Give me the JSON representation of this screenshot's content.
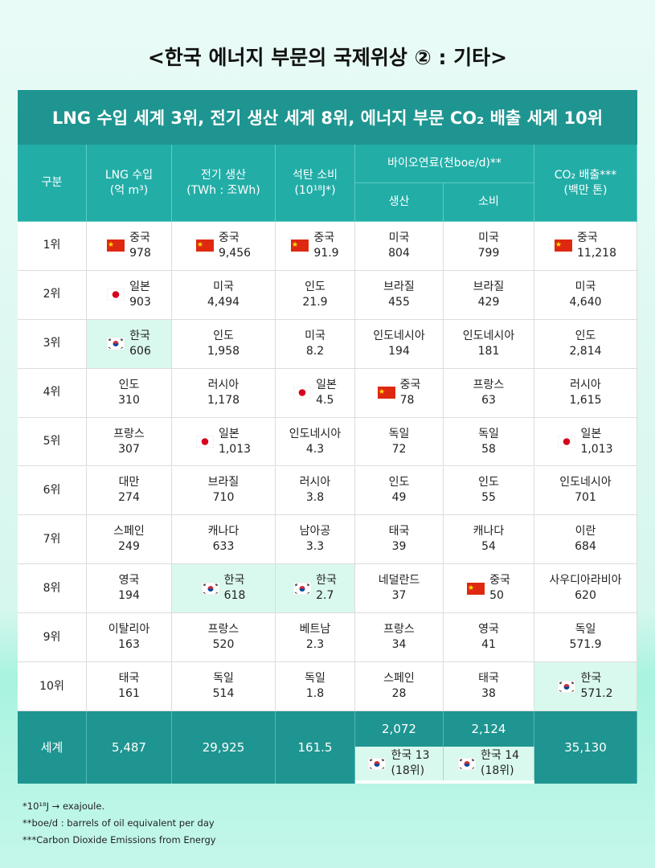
{
  "title": "<한국 에너지 부문의 국제위상 ② : 기타>",
  "banner": "LNG 수입 세계 3위, 전기 생산 세계 8위, 에너지 부문 CO₂ 배출 세계 10위",
  "header": {
    "rank": "구분",
    "columns": [
      [
        "LNG 수입",
        "(억 m³)"
      ],
      [
        "전기 생산",
        "(TWh : 조Wh)"
      ],
      [
        "석탄 소비",
        "(10¹⁸J*)"
      ]
    ],
    "bio": "바이오연료(천boe/d)**",
    "bio_sub": [
      "생산",
      "소비"
    ],
    "co2": [
      "CO₂ 배출***",
      "(백만 톤)"
    ]
  },
  "rows": [
    {
      "rank": "1위",
      "cells": [
        {
          "name": "중국",
          "value": "978",
          "flag": "cn"
        },
        {
          "name": "중국",
          "value": "9,456",
          "flag": "cn"
        },
        {
          "name": "중국",
          "value": "91.9",
          "flag": "cn"
        },
        {
          "name": "미국",
          "value": "804"
        },
        {
          "name": "미국",
          "value": "799"
        },
        {
          "name": "중국",
          "value": "11,218",
          "flag": "cn"
        }
      ]
    },
    {
      "rank": "2위",
      "cells": [
        {
          "name": "일본",
          "value": "903",
          "flag": "jp"
        },
        {
          "name": "미국",
          "value": "4,494"
        },
        {
          "name": "인도",
          "value": "21.9"
        },
        {
          "name": "브라질",
          "value": "455"
        },
        {
          "name": "브라질",
          "value": "429"
        },
        {
          "name": "미국",
          "value": "4,640"
        }
      ]
    },
    {
      "rank": "3위",
      "cells": [
        {
          "name": "한국",
          "value": "606",
          "flag": "kr",
          "highlight": true
        },
        {
          "name": "인도",
          "value": "1,958"
        },
        {
          "name": "미국",
          "value": "8.2"
        },
        {
          "name": "인도네시아",
          "value": "194"
        },
        {
          "name": "인도네시아",
          "value": "181"
        },
        {
          "name": "인도",
          "value": "2,814"
        }
      ]
    },
    {
      "rank": "4위",
      "cells": [
        {
          "name": "인도",
          "value": "310"
        },
        {
          "name": "러시아",
          "value": "1,178"
        },
        {
          "name": "일본",
          "value": "4.5",
          "flag": "jp"
        },
        {
          "name": "중국",
          "value": "78",
          "flag": "cn"
        },
        {
          "name": "프랑스",
          "value": "63"
        },
        {
          "name": "러시아",
          "value": "1,615"
        }
      ]
    },
    {
      "rank": "5위",
      "cells": [
        {
          "name": "프랑스",
          "value": "307"
        },
        {
          "name": "일본",
          "value": "1,013",
          "flag": "jp"
        },
        {
          "name": "인도네시아",
          "value": "4.3"
        },
        {
          "name": "독일",
          "value": "72"
        },
        {
          "name": "독일",
          "value": "58"
        },
        {
          "name": "일본",
          "value": "1,013",
          "flag": "jp"
        }
      ]
    },
    {
      "rank": "6위",
      "cells": [
        {
          "name": "대만",
          "value": "274"
        },
        {
          "name": "브라질",
          "value": "710"
        },
        {
          "name": "러시아",
          "value": "3.8"
        },
        {
          "name": "인도",
          "value": "49"
        },
        {
          "name": "인도",
          "value": "55"
        },
        {
          "name": "인도네시아",
          "value": "701"
        }
      ]
    },
    {
      "rank": "7위",
      "cells": [
        {
          "name": "스페인",
          "value": "249"
        },
        {
          "name": "캐나다",
          "value": "633"
        },
        {
          "name": "남아공",
          "value": "3.3"
        },
        {
          "name": "태국",
          "value": "39"
        },
        {
          "name": "캐나다",
          "value": "54"
        },
        {
          "name": "이란",
          "value": "684"
        }
      ]
    },
    {
      "rank": "8위",
      "cells": [
        {
          "name": "영국",
          "value": "194"
        },
        {
          "name": "한국",
          "value": "618",
          "flag": "kr",
          "highlight": true
        },
        {
          "name": "한국",
          "value": "2.7",
          "flag": "kr",
          "highlight": true
        },
        {
          "name": "네덜란드",
          "value": "37"
        },
        {
          "name": "중국",
          "value": "50",
          "flag": "cn"
        },
        {
          "name": "사우디아라비아",
          "value": "620"
        }
      ]
    },
    {
      "rank": "9위",
      "cells": [
        {
          "name": "이탈리아",
          "value": "163"
        },
        {
          "name": "프랑스",
          "value": "520"
        },
        {
          "name": "베트남",
          "value": "2.3"
        },
        {
          "name": "프랑스",
          "value": "34"
        },
        {
          "name": "영국",
          "value": "41"
        },
        {
          "name": "독일",
          "value": "571.9"
        }
      ]
    },
    {
      "rank": "10위",
      "cells": [
        {
          "name": "태국",
          "value": "161"
        },
        {
          "name": "독일",
          "value": "514"
        },
        {
          "name": "독일",
          "value": "1.8"
        },
        {
          "name": "스페인",
          "value": "28"
        },
        {
          "name": "태국",
          "value": "38"
        },
        {
          "name": "한국",
          "value": "571.2",
          "flag": "kr",
          "highlight": true
        }
      ]
    }
  ],
  "footer": {
    "label": "세계",
    "values": [
      "5,487",
      "29,925",
      "161.5"
    ],
    "bio": [
      {
        "value": "2,072",
        "korea": [
          "한국 13",
          "(18위)"
        ]
      },
      {
        "value": "2,124",
        "korea": [
          "한국 14",
          "(18위)"
        ]
      }
    ],
    "co2": "35,130"
  },
  "notes": [
    "*10¹⁸J → exajoule.",
    "**boe/d : barrels of oil equivalent per day",
    "***Carbon Dioxide Emissions from Energy"
  ]
}
